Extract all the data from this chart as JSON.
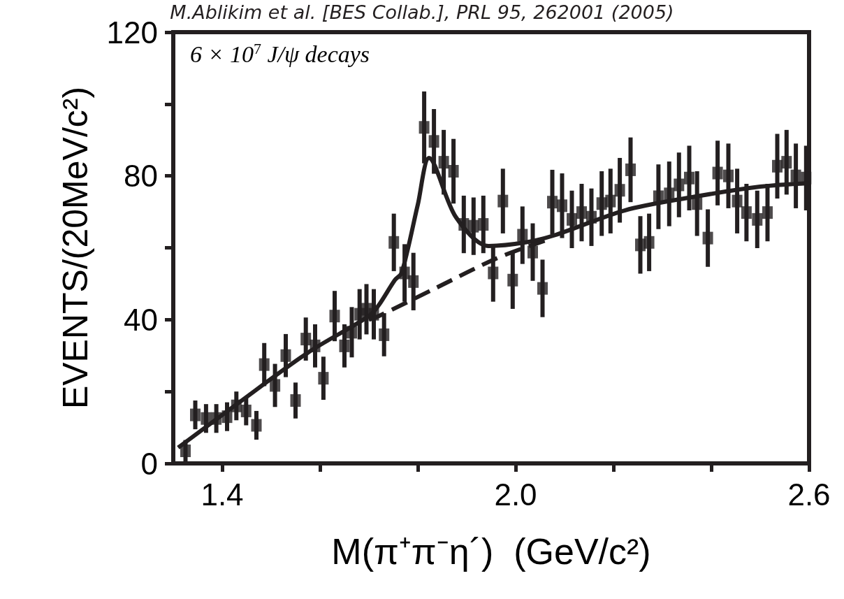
{
  "chart_data": {
    "type": "scatter",
    "xlabel": "M(π⁺π⁻η´)  (GeV/c²)",
    "ylabel": "EVENTS/(20MeV/c²)",
    "annotations": [
      "M.Ablikim et al. [BES Collab.], PRL 95, 262001 (2005)",
      "6 × 10$^{7}$ J/ψ decays"
    ],
    "xlim": [
      1.3,
      2.6
    ],
    "xticks": [
      1.4,
      {
        "value": 1.6,
        "label": null
      },
      {
        "value": 1.8,
        "label": null
      },
      "2.0",
      {
        "value": 2.2,
        "label": null
      },
      {
        "value": 2.4,
        "label": null
      },
      2.6
    ],
    "ylim": [
      0,
      120
    ],
    "yticks": [
      0,
      {
        "value": 20,
        "label": null
      },
      40,
      {
        "value": 60,
        "label": null
      },
      80,
      {
        "value": 100,
        "label": null
      },
      120
    ],
    "grid": false,
    "series": [
      {
        "marker": "square",
        "color": "#231f20",
        "x": [
          1.325,
          1.345,
          1.367,
          1.388,
          1.41,
          1.429,
          1.449,
          1.47,
          1.486,
          1.508,
          1.53,
          1.55,
          1.571,
          1.59,
          1.607,
          1.63,
          1.65,
          1.665,
          1.681,
          1.695,
          1.71,
          1.731,
          1.751,
          1.773,
          1.791,
          1.813,
          1.833,
          1.853,
          1.873,
          1.894,
          1.914,
          1.934,
          1.954,
          1.974,
          1.994,
          2.014,
          2.035,
          2.055,
          2.075,
          2.095,
          2.115,
          2.135,
          2.155,
          2.176,
          2.194,
          2.213,
          2.235,
          2.255,
          2.273,
          2.292,
          2.314,
          2.334,
          2.355,
          2.371,
          2.393,
          2.413,
          2.435,
          2.453,
          2.472,
          2.494,
          2.515,
          2.535,
          2.554,
          2.573,
          2.594
        ],
        "values": [
          3.5,
          13.5,
          12.5,
          12.5,
          13,
          16,
          14.6,
          10.6,
          27.5,
          21.7,
          30,
          17.5,
          34.6,
          32.7,
          23.7,
          41,
          32.7,
          36.5,
          41.5,
          42.9,
          41.5,
          35.8,
          61.5,
          53,
          50.6,
          93.5,
          89.6,
          83.8,
          81.3,
          66.5,
          66,
          66.5,
          53,
          73,
          51,
          63.5,
          58.8,
          48.7,
          72.7,
          71.7,
          67.9,
          69.8,
          68.5,
          72.3,
          73,
          76,
          81.7,
          60.8,
          61.5,
          74.2,
          75,
          77.5,
          79.4,
          72.3,
          62.7,
          80.8,
          80,
          73,
          69.8,
          67.9,
          69.8,
          82.7,
          83.8,
          80,
          79.4
        ],
        "errors": [
          3,
          4,
          4,
          4,
          4,
          4,
          4,
          4,
          6,
          6,
          6,
          5,
          6,
          6,
          6,
          7,
          6,
          7,
          7,
          7,
          7,
          6,
          8,
          8,
          8,
          10,
          9,
          9,
          9,
          8,
          8,
          8,
          8,
          9,
          8,
          8,
          8,
          8,
          9,
          9,
          8,
          8,
          8,
          9,
          9,
          9,
          9,
          8,
          8,
          9,
          9,
          9,
          9,
          9,
          8,
          9,
          9,
          9,
          8,
          8,
          8,
          9,
          9,
          9,
          9
        ]
      },
      {
        "type": "line",
        "marker": "none",
        "line_style": "solid",
        "color": "#231f20",
        "x": [
          1.31,
          1.43,
          1.575,
          1.7,
          1.72,
          1.753,
          1.767,
          1.8,
          1.823,
          1.878,
          1.945,
          2.02,
          2.08,
          2.223,
          2.357,
          2.5,
          2.6
        ],
        "values": [
          4.4,
          16.5,
          30.8,
          41,
          44,
          51,
          53,
          72,
          85,
          68.5,
          60.5,
          61.5,
          63.5,
          70.4,
          74,
          77,
          78
        ]
      },
      {
        "type": "line",
        "marker": "none",
        "line_style": "dashed",
        "color": "#231f20",
        "x": [
          1.7,
          1.72,
          1.84,
          1.96,
          2.06
        ],
        "values": [
          40,
          41,
          49,
          57,
          62
        ]
      }
    ]
  }
}
